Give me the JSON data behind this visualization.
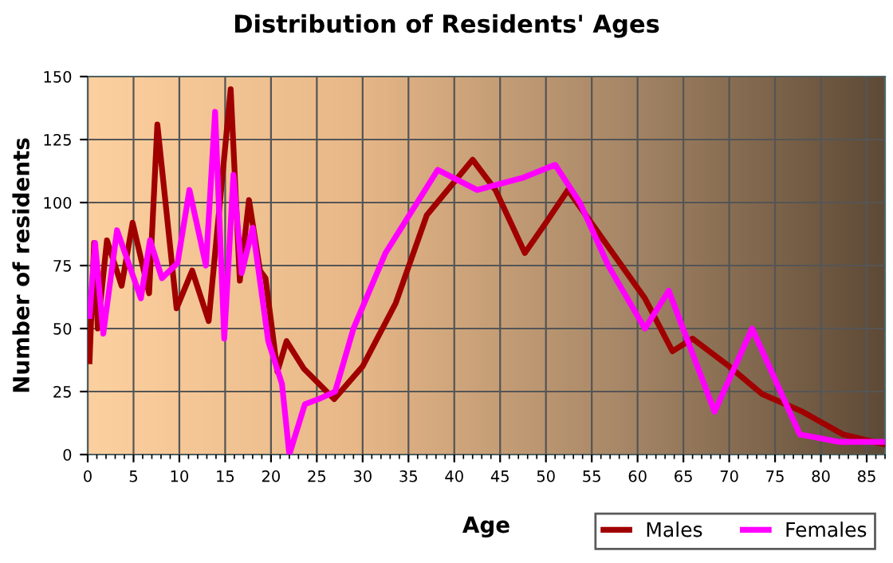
{
  "chart_data": {
    "type": "line",
    "title": "Distribution of Residents' Ages",
    "xlabel": "Age",
    "ylabel": "Number of residents",
    "xlim": [
      0,
      87
    ],
    "xticks": [
      0,
      5,
      10,
      15,
      20,
      25,
      30,
      35,
      40,
      45,
      50,
      55,
      60,
      65,
      70,
      75,
      80,
      85
    ],
    "ylim": [
      0,
      150
    ],
    "yticks": [
      0,
      25,
      50,
      75,
      100,
      125,
      150
    ],
    "grid": true,
    "legend": "bottom right",
    "marker": "none",
    "line_style": "solid",
    "series": [
      {
        "name": "Males",
        "color": "#a00000",
        "x": [
          0.2,
          0.7,
          1.1,
          2.1,
          3.7,
          4.9,
          6.7,
          7.6,
          9.7,
          11.4,
          13.2,
          15.6,
          16.6,
          17.6,
          18.8,
          19.4,
          20.7,
          21.7,
          23.6,
          26.9,
          30,
          33.6,
          37,
          42,
          44.5,
          47.7,
          50,
          52.4,
          56.3,
          60.8,
          63.8,
          66,
          70,
          73.6,
          78,
          82.4,
          87
        ],
        "values": [
          37,
          84,
          50,
          85,
          67,
          92,
          64,
          131,
          58,
          73,
          53,
          145,
          69,
          101,
          73,
          70,
          33,
          45,
          34,
          22,
          35,
          60,
          95,
          117,
          105,
          80,
          92,
          105,
          85,
          62,
          41,
          46,
          35,
          24,
          17,
          8,
          4
        ]
      },
      {
        "name": "Females",
        "color": "#ff00ff",
        "x": [
          0.2,
          0.8,
          1.7,
          3.2,
          5.8,
          6.8,
          8.1,
          9.8,
          11.1,
          12.9,
          13.9,
          14.9,
          15.9,
          16.8,
          18,
          19.7,
          21.2,
          22,
          23.7,
          25.2,
          27,
          29,
          32.5,
          38.2,
          42.5,
          47.6,
          51,
          53.7,
          56.8,
          60.8,
          63.4,
          68.4,
          72.5,
          77.7,
          82,
          87
        ],
        "values": [
          55,
          84,
          48,
          89,
          62,
          85,
          70,
          76,
          105,
          75,
          136,
          46,
          111,
          72,
          90,
          45,
          28,
          0,
          20,
          22,
          25,
          50,
          80,
          113,
          105,
          110,
          115,
          100,
          75,
          50,
          65,
          17,
          50,
          8,
          5,
          5
        ]
      }
    ]
  }
}
